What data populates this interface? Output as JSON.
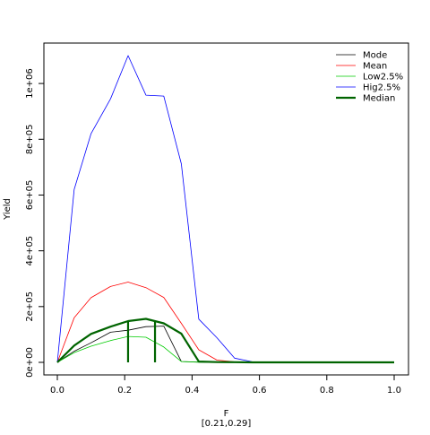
{
  "chart_data": {
    "type": "line",
    "title": "",
    "xlabel": "F",
    "xlabel_sub": "[0.21,0.29]",
    "ylabel": "Yield",
    "xlim": [
      0,
      1
    ],
    "ylim": [
      0,
      1100000
    ],
    "x_ticks": [
      {
        "value": 0.0,
        "label": "0.0"
      },
      {
        "value": 0.2,
        "label": "0.2"
      },
      {
        "value": 0.4,
        "label": "0.4"
      },
      {
        "value": 0.6,
        "label": "0.6"
      },
      {
        "value": 0.8,
        "label": "0.8"
      },
      {
        "value": 1.0,
        "label": "1.0"
      }
    ],
    "y_ticks": [
      {
        "value": 0,
        "label": "0e+00"
      },
      {
        "value": 200000,
        "label": "2e+05"
      },
      {
        "value": 400000,
        "label": "4e+05"
      },
      {
        "value": 600000,
        "label": "6e+05"
      },
      {
        "value": 800000,
        "label": "8e+05"
      },
      {
        "value": 1000000,
        "label": "1e+06"
      }
    ],
    "legend_position": "top-right",
    "series": [
      {
        "name": "Mode",
        "color": "#000000",
        "width": 0.8,
        "x": [
          0,
          0.05,
          0.1,
          0.158,
          0.21,
          0.263,
          0.316,
          0.368,
          0.42,
          0.474,
          0.526,
          0.579,
          1.0
        ],
        "y": [
          0,
          40000,
          70000,
          108000,
          115000,
          128000,
          130000,
          3000,
          1000,
          0,
          0,
          0,
          0
        ]
      },
      {
        "name": "Mean",
        "color": "#ff0000",
        "width": 0.8,
        "x": [
          0,
          0.05,
          0.1,
          0.158,
          0.21,
          0.263,
          0.316,
          0.368,
          0.42,
          0.474,
          0.526,
          0.579,
          1.0
        ],
        "y": [
          0,
          160000,
          232000,
          272000,
          288000,
          268000,
          233000,
          140000,
          45000,
          8000,
          2000,
          500,
          0
        ]
      },
      {
        "name": "Low2.5%",
        "color": "#00cc00",
        "width": 0.8,
        "x": [
          0,
          0.05,
          0.1,
          0.158,
          0.21,
          0.263,
          0.316,
          0.368,
          0.42,
          0.474,
          0.526,
          0.579,
          1.0
        ],
        "y": [
          0,
          35000,
          58000,
          78000,
          93000,
          90000,
          55000,
          3000,
          500,
          0,
          0,
          0,
          0
        ]
      },
      {
        "name": "Hig2.5%",
        "color": "#0000ff",
        "width": 0.8,
        "x": [
          0,
          0.05,
          0.1,
          0.158,
          0.21,
          0.263,
          0.316,
          0.368,
          0.42,
          0.474,
          0.526,
          0.579,
          1.0
        ],
        "y": [
          0,
          620000,
          820000,
          945000,
          1100000,
          958000,
          955000,
          712000,
          155000,
          88000,
          15000,
          2000,
          0
        ]
      },
      {
        "name": "Median",
        "color": "#006400",
        "width": 2.2,
        "x": [
          0,
          0.05,
          0.1,
          0.158,
          0.21,
          0.263,
          0.316,
          0.368,
          0.42,
          0.474,
          0.526,
          0.579,
          1.0
        ],
        "y": [
          0,
          60000,
          102000,
          128000,
          148000,
          156000,
          140000,
          103000,
          3000,
          1000,
          500,
          0,
          0
        ]
      }
    ],
    "vertical_markers": {
      "color": "#006400",
      "x": [
        0.21,
        0.29
      ],
      "y_top": [
        148000,
        150000
      ]
    }
  }
}
